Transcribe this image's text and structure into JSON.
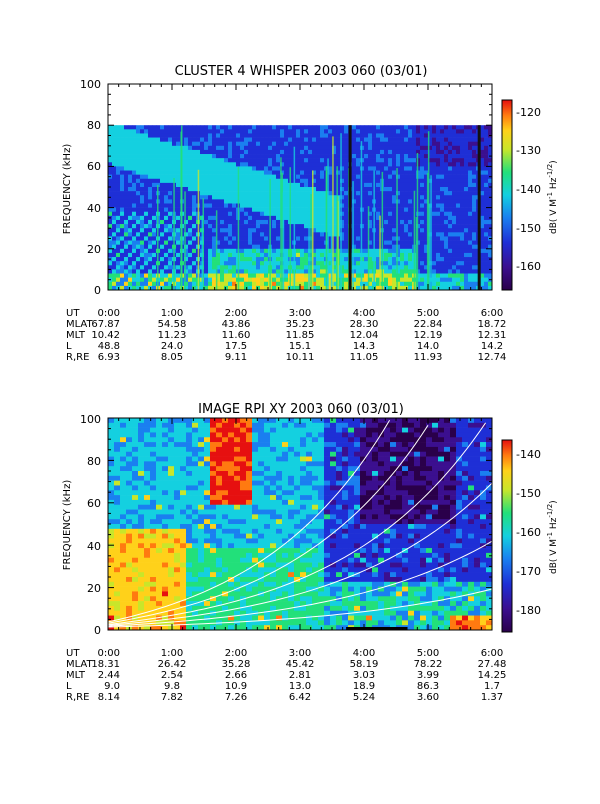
{
  "chart_data": [
    {
      "type": "heatmap",
      "title": "CLUSTER 4 WHISPER 2003 060 (03/01)",
      "ylabel": "FREQUENCY (kHz)",
      "ylim": [
        0,
        100
      ],
      "y_ticks": [
        "0",
        "20",
        "40",
        "60",
        "80",
        "100"
      ],
      "data_max_frequency": 80,
      "colorbar": {
        "label": "dB( V M⁻¹ Hz⁻¹ᐟ²)",
        "label_parts": [
          "dB( V M",
          "-1",
          " Hz",
          "-1/2",
          ")"
        ],
        "range": [
          -167,
          -118
        ],
        "ticks": [
          "-120",
          "-130",
          "-140",
          "-150",
          "-160"
        ],
        "tick_values": [
          -120,
          -130,
          -140,
          -150,
          -160
        ]
      },
      "ephemeris": {
        "labels": [
          "UT",
          "MLAT",
          "MLT",
          "L",
          "R,RE"
        ],
        "columns": [
          [
            "0:00",
            "67.87",
            "10.42",
            "48.8",
            "6.93"
          ],
          [
            "1:00",
            "54.58",
            "11.23",
            "24.0",
            "8.05"
          ],
          [
            "2:00",
            "43.86",
            "11.60",
            "17.5",
            "9.11"
          ],
          [
            "3:00",
            "35.23",
            "11.85",
            "15.1",
            "10.11"
          ],
          [
            "4:00",
            "28.30",
            "12.04",
            "14.3",
            "11.05"
          ],
          [
            "5:00",
            "22.84",
            "12.19",
            "14.0",
            "11.93"
          ],
          [
            "6:00",
            "18.72",
            "12.31",
            "14.2",
            "12.74"
          ]
        ]
      },
      "data_gaps_ut": [
        "3:47",
        "5:48"
      ]
    },
    {
      "type": "heatmap",
      "title": "IMAGE RPI XY 2003 060 (03/01)",
      "ylabel": "FREQUENCY (kHz)",
      "ylim": [
        0,
        100
      ],
      "y_ticks": [
        "0",
        "20",
        "40",
        "60",
        "80",
        "100"
      ],
      "colorbar": {
        "label_parts": [
          "dB( V M",
          "-1",
          " Hz",
          "-1/2",
          ")"
        ],
        "range": [
          -186,
          -134
        ],
        "ticks": [
          "-140",
          "-150",
          "-160",
          "-170",
          "-180"
        ],
        "tick_values": [
          -140,
          -150,
          -160,
          -170,
          -180
        ]
      },
      "ephemeris": {
        "labels": [
          "UT",
          "MLAT",
          "MLT",
          "L",
          "R,RE"
        ],
        "columns": [
          [
            "0:00",
            "18.31",
            "2.44",
            "9.0",
            "8.14"
          ],
          [
            "1:00",
            "26.42",
            "2.54",
            "9.8",
            "7.82"
          ],
          [
            "2:00",
            "35.28",
            "2.66",
            "10.9",
            "7.26"
          ],
          [
            "3:00",
            "45.42",
            "2.81",
            "13.0",
            "6.42"
          ],
          [
            "4:00",
            "58.19",
            "3.03",
            "18.9",
            "5.24"
          ],
          [
            "5:00",
            "78.22",
            "3.99",
            "86.3",
            "3.60"
          ],
          [
            "6:00",
            "27.48",
            "14.25",
            "1.7",
            "1.37"
          ]
        ]
      }
    }
  ],
  "colors": {
    "scale": [
      "#2a004a",
      "#3b0f8f",
      "#1e2fd6",
      "#1a7ff0",
      "#14d0e0",
      "#22e07a",
      "#c8e62a",
      "#ffd11a",
      "#ff7a10",
      "#e61010"
    ]
  }
}
